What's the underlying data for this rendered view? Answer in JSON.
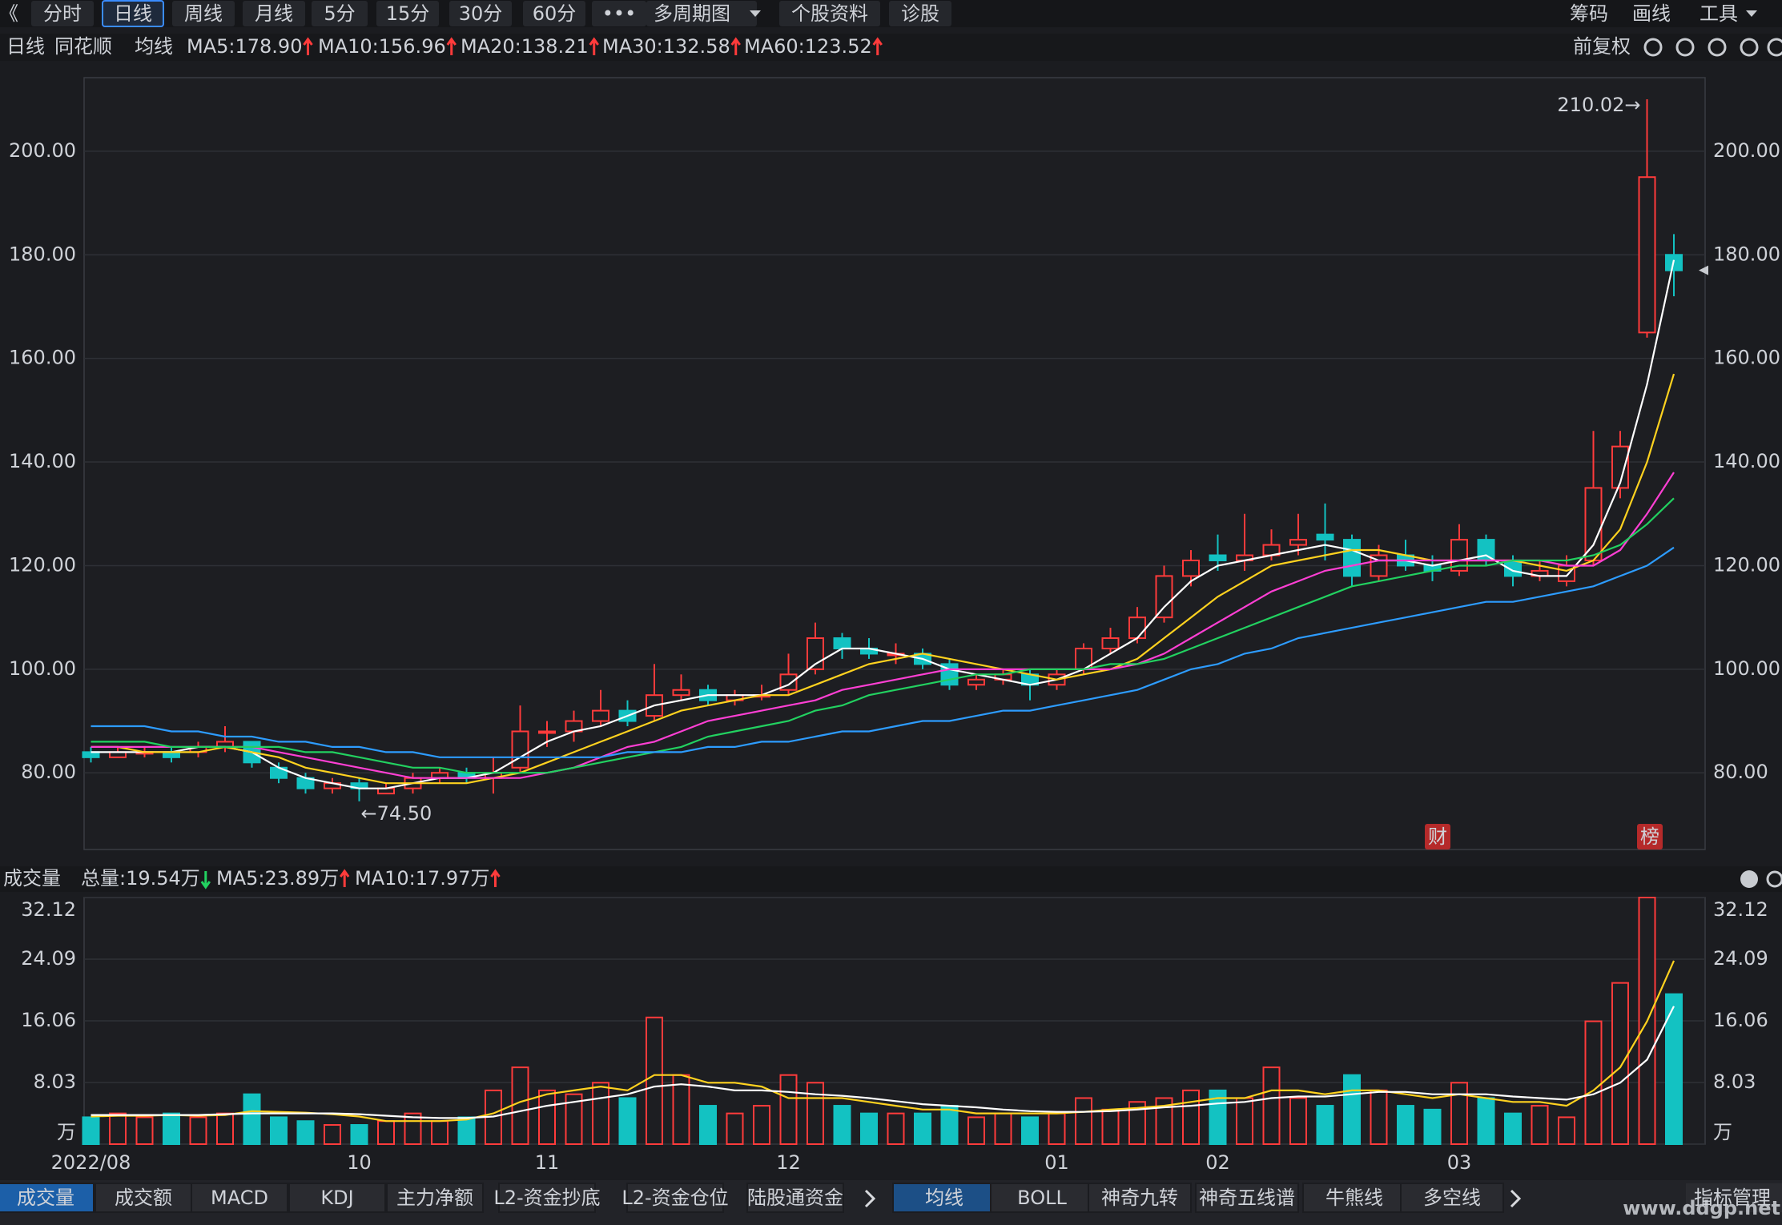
{
  "toolbar": {
    "left": [
      "《",
      "分时",
      "日线",
      "周线",
      "月线",
      "5分",
      "15分",
      "30分",
      "60分",
      "•••",
      "多周期图",
      "个股资料",
      "诊股"
    ],
    "right": [
      "筹码",
      "画线",
      "工具"
    ]
  },
  "chart_data": [
    {
      "type": "candlestick",
      "period": "日线",
      "stock": "同花顺",
      "ma_label": "均线",
      "adjust": "前复权",
      "up_color": "#ff3b3b",
      "down_color": "#13c2c2",
      "candles": [
        [
          84,
          85,
          82,
          83
        ],
        [
          83,
          85,
          83,
          84
        ],
        [
          84,
          85,
          83,
          84
        ],
        [
          84,
          85,
          82,
          83
        ],
        [
          84,
          86,
          83,
          85
        ],
        [
          85,
          89,
          84,
          86
        ],
        [
          86,
          86,
          81,
          82
        ],
        [
          81,
          82,
          78,
          79
        ],
        [
          79,
          80,
          76,
          77
        ],
        [
          77,
          79,
          76,
          78
        ],
        [
          78,
          79,
          74.5,
          77
        ],
        [
          76,
          78,
          76,
          77
        ],
        [
          77,
          80,
          76,
          79
        ],
        [
          79,
          81,
          78,
          80
        ],
        [
          80,
          81,
          78,
          79
        ],
        [
          79,
          83,
          76,
          80
        ],
        [
          81,
          93,
          80,
          88
        ],
        [
          88,
          90,
          85,
          88
        ],
        [
          88,
          92,
          86,
          90
        ],
        [
          90,
          96,
          89,
          92
        ],
        [
          92,
          94,
          89,
          90
        ],
        [
          91,
          101,
          90,
          95
        ],
        [
          95,
          99,
          94,
          96
        ],
        [
          96,
          97,
          93,
          94
        ],
        [
          94,
          96,
          93,
          95
        ],
        [
          95,
          97,
          94,
          95
        ],
        [
          96,
          103,
          95,
          99
        ],
        [
          100,
          109,
          99,
          106
        ],
        [
          106,
          107,
          102,
          104
        ],
        [
          104,
          106,
          102,
          103
        ],
        [
          103,
          105,
          101,
          103
        ],
        [
          103,
          104,
          100,
          101
        ],
        [
          101,
          102,
          96,
          97
        ],
        [
          97,
          99,
          96,
          98
        ],
        [
          98,
          100,
          97,
          99
        ],
        [
          99,
          100,
          94,
          97
        ],
        [
          97,
          100,
          96,
          99
        ],
        [
          100,
          105,
          99,
          104
        ],
        [
          104,
          108,
          103,
          106
        ],
        [
          106,
          112,
          105,
          110
        ],
        [
          110,
          120,
          109,
          118
        ],
        [
          118,
          123,
          116,
          121
        ],
        [
          122,
          126,
          119,
          121
        ],
        [
          121,
          130,
          119,
          122
        ],
        [
          122,
          127,
          121,
          124
        ],
        [
          124,
          130,
          122,
          125
        ],
        [
          126,
          132,
          121,
          125
        ],
        [
          125,
          126,
          116,
          118
        ],
        [
          118,
          124,
          117,
          122
        ],
        [
          122,
          125,
          119,
          120
        ],
        [
          120,
          122,
          117,
          119
        ],
        [
          119,
          128,
          118,
          125
        ],
        [
          125,
          126,
          120,
          121
        ],
        [
          121,
          122,
          116,
          118
        ],
        [
          118,
          121,
          117,
          119
        ],
        [
          117,
          122,
          116,
          120
        ],
        [
          121,
          146,
          120,
          135
        ],
        [
          135,
          146,
          133,
          143
        ],
        [
          165,
          210.02,
          164,
          195
        ],
        [
          180,
          184,
          172,
          177
        ]
      ],
      "series": [
        {
          "name": "MA5:178.90",
          "color": "#ffffff",
          "values": [
            84,
            84,
            84,
            84,
            85,
            85,
            84,
            81,
            79,
            78,
            77,
            77,
            78,
            79,
            79,
            80,
            83,
            86,
            88,
            89,
            91,
            93,
            94,
            95,
            95,
            95,
            97,
            101,
            104,
            104,
            103,
            102,
            100,
            99,
            98,
            97,
            98,
            100,
            103,
            106,
            112,
            117,
            120,
            121,
            122,
            123,
            124,
            123,
            121,
            121,
            120,
            121,
            122,
            119,
            118,
            118,
            124,
            136,
            155,
            179
          ]
        },
        {
          "name": "MA10:156.96",
          "color": "#ffd21f",
          "values": [
            85,
            85,
            84,
            84,
            84,
            85,
            84,
            83,
            81,
            80,
            79,
            78,
            78,
            78,
            78,
            79,
            80,
            82,
            84,
            86,
            88,
            90,
            92,
            93,
            94,
            95,
            95,
            97,
            99,
            101,
            102,
            103,
            102,
            101,
            100,
            99,
            98,
            99,
            100,
            102,
            106,
            110,
            114,
            117,
            120,
            121,
            122,
            123,
            123,
            122,
            121,
            121,
            121,
            121,
            120,
            119,
            121,
            127,
            140,
            157
          ]
        },
        {
          "name": "MA20:138.21",
          "color": "#ff3fd4",
          "values": [
            85,
            85,
            85,
            85,
            85,
            85,
            85,
            84,
            83,
            82,
            81,
            80,
            79,
            79,
            79,
            79,
            79,
            80,
            81,
            83,
            85,
            86,
            88,
            90,
            91,
            92,
            93,
            94,
            96,
            97,
            98,
            99,
            100,
            100,
            100,
            100,
            100,
            100,
            100,
            101,
            103,
            106,
            109,
            112,
            115,
            117,
            119,
            120,
            121,
            121,
            121,
            121,
            121,
            121,
            121,
            120,
            120,
            123,
            130,
            138
          ]
        },
        {
          "name": "MA30:132.58",
          "color": "#22d160",
          "values": [
            86,
            86,
            86,
            85,
            85,
            85,
            85,
            85,
            84,
            84,
            83,
            82,
            81,
            81,
            80,
            80,
            80,
            80,
            81,
            82,
            83,
            84,
            85,
            87,
            88,
            89,
            90,
            92,
            93,
            95,
            96,
            97,
            98,
            99,
            99,
            100,
            100,
            100,
            101,
            101,
            102,
            104,
            106,
            108,
            110,
            112,
            114,
            116,
            117,
            118,
            119,
            120,
            120,
            121,
            121,
            121,
            122,
            124,
            128,
            133
          ]
        },
        {
          "name": "MA60:123.52",
          "color": "#2d9cff",
          "values": [
            89,
            89,
            89,
            88,
            88,
            87,
            87,
            86,
            86,
            85,
            85,
            84,
            84,
            83,
            83,
            83,
            83,
            83,
            83,
            83,
            84,
            84,
            84,
            85,
            85,
            86,
            86,
            87,
            88,
            88,
            89,
            90,
            90,
            91,
            92,
            92,
            93,
            94,
            95,
            96,
            98,
            100,
            101,
            103,
            104,
            106,
            107,
            108,
            109,
            110,
            111,
            112,
            113,
            113,
            114,
            115,
            116,
            118,
            120,
            123.5
          ]
        }
      ],
      "ylim": [
        65.2,
        214.2
      ],
      "yticks": [
        {
          "value": 80,
          "label": "80.00"
        },
        {
          "value": 100,
          "label": "100.00"
        },
        {
          "value": 120,
          "label": "120.00"
        },
        {
          "value": 140,
          "label": "140.00"
        },
        {
          "value": 160,
          "label": "160.00"
        },
        {
          "value": 180,
          "label": "180.00"
        },
        {
          "value": 200,
          "label": "200.00"
        }
      ],
      "annotations": {
        "high": "210.02→",
        "low": "←74.50"
      },
      "markers": [
        "财",
        "榜"
      ],
      "grid": true
    },
    {
      "type": "bar",
      "title": "成交量",
      "total": "总量:19.54万",
      "values": [
        3.5,
        4,
        3.5,
        4,
        3.5,
        4,
        6.5,
        3.5,
        3,
        2.5,
        2.5,
        3,
        4,
        3,
        3.5,
        7,
        10,
        7,
        6.5,
        8,
        6,
        16.5,
        9,
        5,
        4,
        5,
        9,
        8,
        5,
        4,
        4,
        4,
        5,
        3.5,
        4,
        3.5,
        4,
        6,
        4.5,
        5.5,
        6,
        7,
        7,
        6,
        10,
        6,
        5,
        9,
        7,
        5,
        4.5,
        8,
        6,
        4,
        5,
        3.5,
        16,
        21,
        32.12,
        19.54
      ],
      "series": [
        {
          "name": "MA5:23.89万",
          "color": "#ffd21f",
          "values": [
            3.6,
            3.7,
            3.7,
            3.8,
            3.7,
            3.8,
            4.3,
            4.2,
            4.1,
            3.9,
            3.6,
            3,
            3,
            3,
            3.2,
            4,
            5.5,
            6.5,
            7,
            7.5,
            7,
            9,
            9,
            8,
            8,
            7.5,
            6,
            6,
            6,
            5.5,
            5,
            4.5,
            4.5,
            4,
            4,
            4,
            4,
            4.2,
            4.5,
            4.7,
            5,
            5.5,
            6,
            6,
            7,
            7,
            6.5,
            7,
            7,
            6.5,
            6,
            6.5,
            6,
            5.5,
            5.5,
            5,
            7,
            10,
            16,
            23.89
          ]
        },
        {
          "name": "MA10:17.97万",
          "color": "#ffffff",
          "values": [
            3.8,
            3.8,
            3.8,
            3.8,
            3.8,
            3.9,
            4,
            4,
            4,
            4,
            3.9,
            3.7,
            3.5,
            3.4,
            3.4,
            3.6,
            4.3,
            5,
            5.5,
            6,
            6.5,
            7.5,
            7.8,
            7.5,
            7,
            7,
            6.8,
            6.5,
            6.3,
            6,
            5.6,
            5.2,
            5,
            4.8,
            4.5,
            4.3,
            4.2,
            4.2,
            4.3,
            4.5,
            4.8,
            5,
            5.3,
            5.5,
            6,
            6.2,
            6.2,
            6.5,
            6.8,
            6.8,
            6.5,
            6.5,
            6.5,
            6.2,
            6,
            5.8,
            6.5,
            8,
            11,
            17.97
          ]
        }
      ],
      "categories": [
        "2022/08",
        null,
        null,
        null,
        null,
        null,
        null,
        null,
        null,
        null,
        "10",
        null,
        null,
        null,
        null,
        null,
        null,
        "11",
        null,
        null,
        null,
        null,
        null,
        null,
        null,
        null,
        "12",
        null,
        null,
        null,
        null,
        null,
        null,
        null,
        null,
        null,
        "01",
        null,
        null,
        null,
        null,
        null,
        "02",
        null,
        null,
        null,
        null,
        null,
        null,
        null,
        null,
        "03",
        null,
        null,
        null,
        null,
        null,
        null,
        null,
        null
      ],
      "ylim": [
        0,
        32.12
      ],
      "yticks": [
        {
          "value": 0,
          "label": "万"
        },
        8.03,
        16.06,
        24.09,
        32.12
      ],
      "grid": true
    }
  ],
  "indicator_tabs": [
    "成交量",
    "成交额",
    "MACD",
    "KDJ",
    "主力净额",
    "L2-资金抄底",
    "L2-资金仓位",
    "陆股通资金"
  ],
  "overlay_tabs": [
    "均线",
    "BOLL",
    "神奇九转",
    "神奇五线谱",
    "牛熊线",
    "多空线"
  ],
  "manage": "指标管理",
  "watermark": "www.ddgp.net"
}
